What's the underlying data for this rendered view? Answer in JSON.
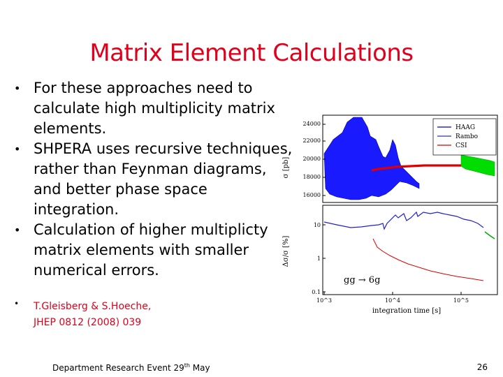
{
  "slide": {
    "title": "Matrix Element Calculations",
    "bullets": [
      "For these approaches need to calculate high multiplicity matrix elements.",
      "SHPERA uses recursive techniques, rather than Feynman diagrams, and better phase space integration.",
      "Calculation of higher multiplicty matrix elements with smaller numerical errors."
    ],
    "bullet_marker": "•",
    "reference_line1": "T.Gleisberg & S.Hoeche,",
    "reference_line2": "JHEP 0812 (2008) 039",
    "footer_text": "Department Research Event 29",
    "footer_sup": "th",
    "footer_suffix": " May",
    "page_number": "26"
  },
  "chart_data": [
    {
      "type": "line",
      "ylabel": "σ [pb]",
      "y_ticks": [
        "16000",
        "18000",
        "20000",
        "22000",
        "24000"
      ],
      "ylim": [
        15000,
        25000
      ],
      "legend": [
        "HAAG",
        "Rambo",
        "CSI"
      ],
      "legend_placement": "top-right",
      "colors": {
        "HAAG": "#0000cc",
        "Rambo": "#3333aa",
        "CSI": "#dd0000",
        "band_green": "#00dd00"
      }
    },
    {
      "type": "line",
      "ylabel": "Δσ/σ [%]",
      "xlabel": "integration time [s]",
      "x_ticks": [
        "10^3",
        "10^4",
        "10^5"
      ],
      "y_ticks": [
        "0.1",
        "1",
        "10"
      ],
      "annotation": "gg → 6g",
      "scale": "log-log"
    }
  ]
}
